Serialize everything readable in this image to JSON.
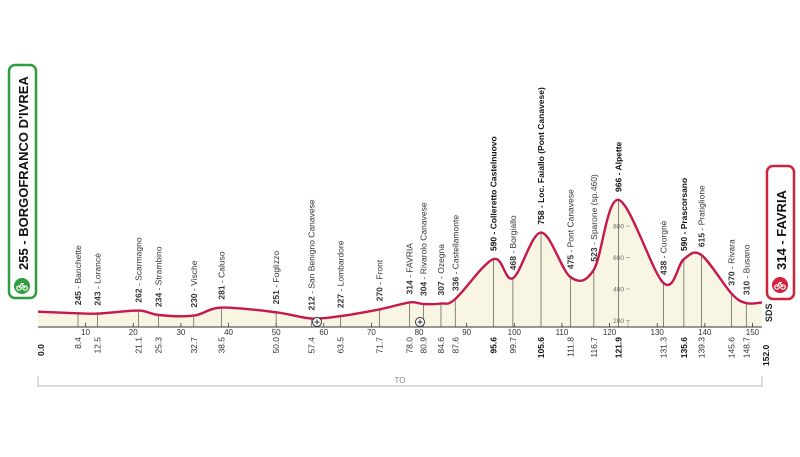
{
  "start": {
    "label": "255 - BORGOFRANCO D'IVREA",
    "km": "0.0",
    "color": "#2e9e3e"
  },
  "finish": {
    "label": "314 - FAVRIA",
    "km": "152.0",
    "color": "#d0223a"
  },
  "chart_data": {
    "type": "area",
    "series": [
      {
        "x": [
          0,
          8.4,
          12.5,
          21.1,
          25.3,
          32.7,
          38.5,
          50.0,
          57.4,
          63.5,
          71.7,
          78.0,
          80.9,
          84.6,
          87.6,
          95.6,
          99.7,
          105.6,
          111.8,
          116.7,
          121.9,
          131.3,
          135.6,
          139.3,
          145.6,
          148.7,
          152.0
        ],
        "y": [
          255,
          245,
          243,
          262,
          234,
          230,
          281,
          251,
          212,
          227,
          270,
          314,
          304,
          307,
          336,
          590,
          468,
          758,
          475,
          523,
          966,
          438,
          590,
          615,
          370,
          310,
          314
        ]
      }
    ],
    "xlim": [
      0,
      152
    ],
    "ylim": [
      0,
      1000
    ],
    "y_ticks": [
      "200",
      "400",
      "600",
      "800"
    ],
    "x_ticks": [
      "10",
      "20",
      "30",
      "40",
      "50",
      "60",
      "70",
      "80",
      "90",
      "100",
      "110",
      "120",
      "130",
      "140",
      "150"
    ],
    "fill_color": "#f8f6e3",
    "line_color": "#c8174a",
    "axis_note": "TO"
  },
  "points": [
    {
      "km": "8.4",
      "alt": "245",
      "name": "Banchette",
      "bold": false
    },
    {
      "km": "12.5",
      "alt": "243",
      "name": "Lorancè",
      "bold": false
    },
    {
      "km": "21.1",
      "alt": "262",
      "name": "Scarmagno",
      "bold": false
    },
    {
      "km": "25.3",
      "alt": "234",
      "name": "Strambino",
      "bold": false
    },
    {
      "km": "32.7",
      "alt": "230",
      "name": "Vische",
      "bold": false
    },
    {
      "km": "38.5",
      "alt": "281",
      "name": "Caluso",
      "bold": false
    },
    {
      "km": "50.0",
      "alt": "251",
      "name": "Foglizzo",
      "bold": false
    },
    {
      "km": "57.4",
      "alt": "212",
      "name": "San Benigno Canavese",
      "bold": false
    },
    {
      "km": "63.5",
      "alt": "227",
      "name": "Lombardore",
      "bold": false
    },
    {
      "km": "71.7",
      "alt": "270",
      "name": "Front",
      "bold": false
    },
    {
      "km": "78.0",
      "alt": "314",
      "name": "FAVRIA",
      "bold": false
    },
    {
      "km": "80.9",
      "alt": "304",
      "name": "Rivarolo Canavese",
      "bold": false
    },
    {
      "km": "84.6",
      "alt": "307",
      "name": "Ozegna",
      "bold": false
    },
    {
      "km": "87.6",
      "alt": "336",
      "name": "Castellamonte",
      "bold": false
    },
    {
      "km": "95.6",
      "alt": "590",
      "name": "Colleretto Castelnuovo",
      "bold": true
    },
    {
      "km": "99.7",
      "alt": "468",
      "name": "Borgiallo",
      "bold": false
    },
    {
      "km": "105.6",
      "alt": "758",
      "name": "Loc. Faiallo (Pont Canavese)",
      "bold": true
    },
    {
      "km": "111.8",
      "alt": "475",
      "name": "Pont Canavese",
      "bold": false
    },
    {
      "km": "116.7",
      "alt": "523",
      "name": "Sparone (sp.460)",
      "bold": false
    },
    {
      "km": "121.9",
      "alt": "966",
      "name": "Alpette",
      "bold": true
    },
    {
      "km": "131.3",
      "alt": "438",
      "name": "Cuorgnè",
      "bold": false
    },
    {
      "km": "135.6",
      "alt": "590",
      "name": "Prascorsano",
      "bold": true
    },
    {
      "km": "139.3",
      "alt": "615",
      "name": "Pratiglione",
      "bold": false
    },
    {
      "km": "145.6",
      "alt": "370",
      "name": "Rivara",
      "bold": false
    },
    {
      "km": "148.7",
      "alt": "310",
      "name": "Busano",
      "bold": false
    }
  ],
  "logo_text": "SDS"
}
